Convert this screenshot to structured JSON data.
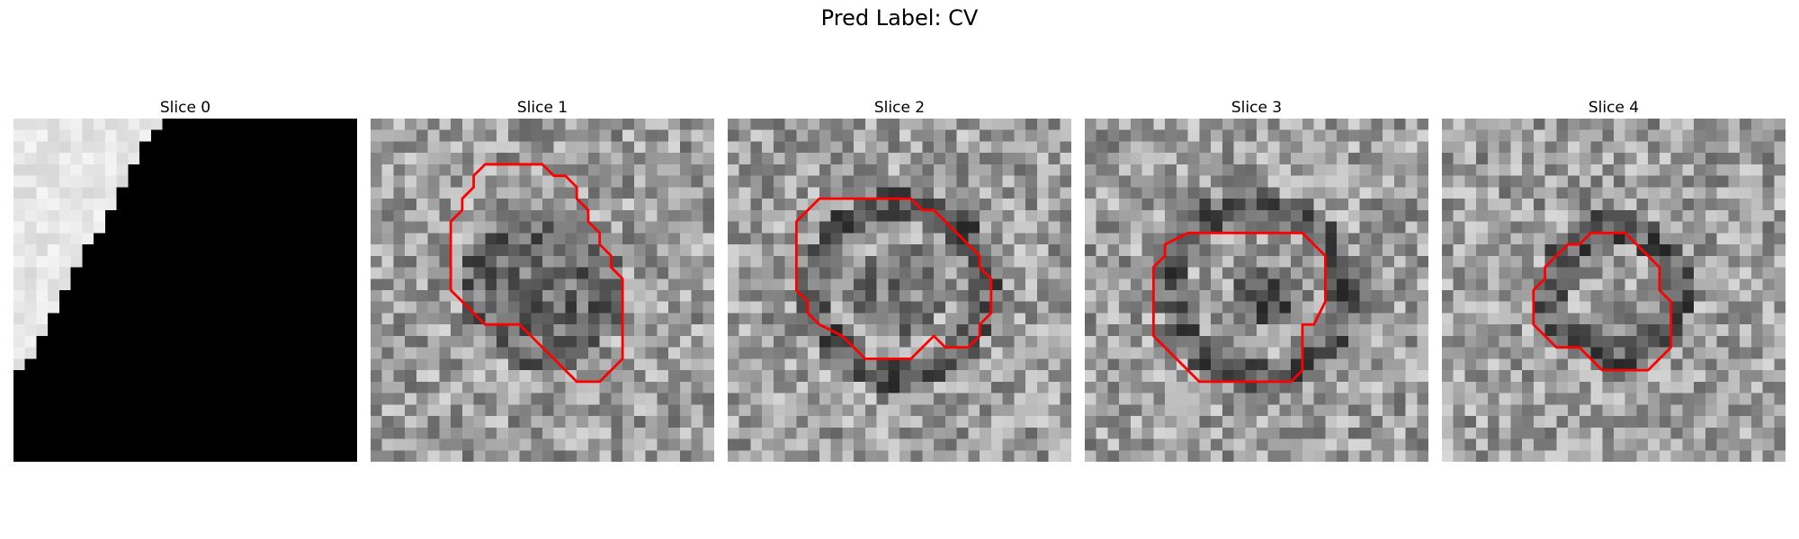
{
  "figure": {
    "title": "Pred Label: CV"
  },
  "panels": [
    {
      "title": "Slice 0",
      "contour": null,
      "seed": 11,
      "pattern": "edge"
    },
    {
      "title": "Slice 1",
      "seed": 101,
      "pattern": "ring1",
      "contour": [
        [
          11,
          4
        ],
        [
          15,
          4
        ],
        [
          16,
          5
        ],
        [
          17,
          5
        ],
        [
          18,
          6
        ],
        [
          18,
          7
        ],
        [
          19,
          8
        ],
        [
          19,
          9
        ],
        [
          20,
          10
        ],
        [
          20,
          11
        ],
        [
          21,
          12
        ],
        [
          21,
          13
        ],
        [
          22,
          14
        ],
        [
          22,
          21
        ],
        [
          21,
          22
        ],
        [
          20,
          23
        ],
        [
          18,
          23
        ],
        [
          17,
          22
        ],
        [
          16,
          21
        ],
        [
          15,
          20
        ],
        [
          14,
          19
        ],
        [
          13,
          18
        ],
        [
          12,
          18
        ],
        [
          10,
          18
        ],
        [
          9,
          17
        ],
        [
          8,
          16
        ],
        [
          7,
          15
        ],
        [
          7,
          9
        ],
        [
          8,
          8
        ],
        [
          8,
          7
        ],
        [
          9,
          6
        ],
        [
          9,
          5
        ],
        [
          10,
          4
        ]
      ]
    },
    {
      "title": "Slice 2",
      "seed": 202,
      "pattern": "ring2",
      "contour": [
        [
          10,
          7
        ],
        [
          12,
          7
        ],
        [
          14,
          7
        ],
        [
          16,
          7
        ],
        [
          17,
          8
        ],
        [
          18,
          8
        ],
        [
          19,
          9
        ],
        [
          20,
          10
        ],
        [
          21,
          11
        ],
        [
          22,
          12
        ],
        [
          22,
          13
        ],
        [
          23,
          14
        ],
        [
          23,
          17
        ],
        [
          22,
          18
        ],
        [
          22,
          19
        ],
        [
          21,
          20
        ],
        [
          19,
          20
        ],
        [
          18,
          19
        ],
        [
          17,
          20
        ],
        [
          16,
          21
        ],
        [
          12,
          21
        ],
        [
          11,
          20
        ],
        [
          10,
          19
        ],
        [
          8,
          18
        ],
        [
          7,
          17
        ],
        [
          7,
          16
        ],
        [
          6,
          15
        ],
        [
          6,
          9
        ],
        [
          7,
          8
        ],
        [
          8,
          7
        ]
      ]
    },
    {
      "title": "Slice 3",
      "seed": 303,
      "pattern": "ring3",
      "contour": [
        [
          7,
          11
        ],
        [
          9,
          10
        ],
        [
          19,
          10
        ],
        [
          20,
          11
        ],
        [
          21,
          12
        ],
        [
          21,
          16
        ],
        [
          20,
          18
        ],
        [
          19,
          18
        ],
        [
          19,
          22
        ],
        [
          18,
          23
        ],
        [
          10,
          23
        ],
        [
          9,
          22
        ],
        [
          8,
          21
        ],
        [
          7,
          20
        ],
        [
          6,
          19
        ],
        [
          6,
          13
        ],
        [
          7,
          12
        ]
      ]
    },
    {
      "title": "Slice 4",
      "seed": 404,
      "pattern": "ring4",
      "contour": [
        [
          10,
          12
        ],
        [
          11,
          11
        ],
        [
          12,
          11
        ],
        [
          13,
          10
        ],
        [
          16,
          10
        ],
        [
          17,
          11
        ],
        [
          18,
          12
        ],
        [
          19,
          13
        ],
        [
          19,
          15
        ],
        [
          20,
          16
        ],
        [
          20,
          20
        ],
        [
          19,
          21
        ],
        [
          18,
          22
        ],
        [
          14,
          22
        ],
        [
          13,
          21
        ],
        [
          12,
          20
        ],
        [
          10,
          20
        ],
        [
          9,
          19
        ],
        [
          8,
          18
        ],
        [
          8,
          15
        ],
        [
          9,
          14
        ],
        [
          9,
          13
        ]
      ]
    }
  ],
  "colors": {
    "contour": "#ff0000"
  }
}
